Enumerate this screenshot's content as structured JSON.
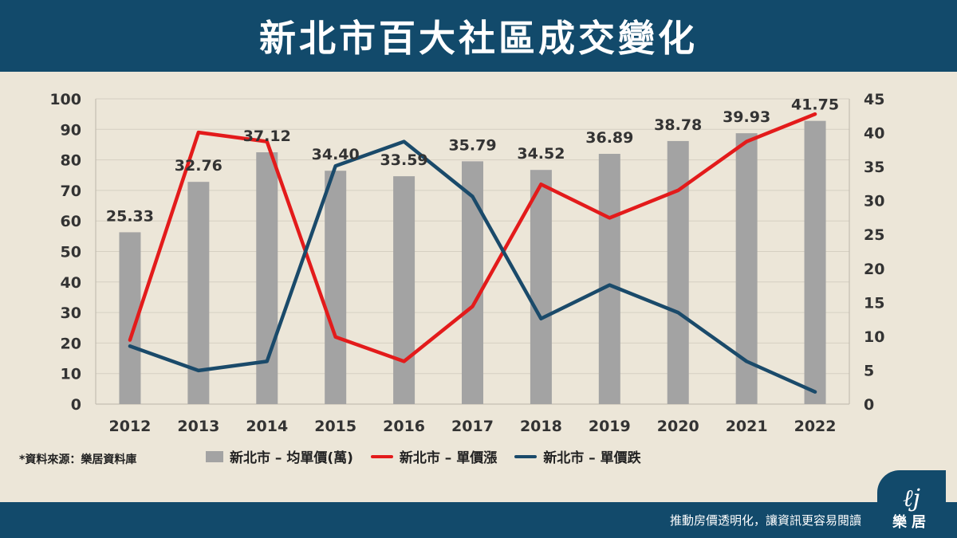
{
  "header": {
    "title": "新北市百大社區成交變化"
  },
  "source_note": "*資料來源：樂居資料庫",
  "footer": {
    "slogan": "推動房價透明化，讓資訊更容易閱讀",
    "logo_text": "樂居",
    "logo_mark": "ℓj"
  },
  "legend": {
    "avg_price": "新北市 – 均單價(萬)",
    "rise": "新北市 – 單價漲",
    "fall": "新北市 – 單價跌"
  },
  "colors": {
    "bar": "#a3a3a3",
    "rise": "#e31b1b",
    "fall": "#1a4a6a",
    "header": "#124a6b",
    "background": "#ece6d8"
  },
  "chart_data": {
    "type": "bar",
    "categories": [
      "2012",
      "2013",
      "2014",
      "2015",
      "2016",
      "2017",
      "2018",
      "2019",
      "2020",
      "2021",
      "2022"
    ],
    "series": [
      {
        "name": "新北市 – 均單價(萬)",
        "type": "bar",
        "axis": "right",
        "values": [
          25.33,
          32.76,
          37.12,
          34.4,
          33.59,
          35.79,
          34.52,
          36.89,
          38.78,
          39.93,
          41.75
        ],
        "labels": [
          "25.33",
          "32.76",
          "37.12",
          "34.40",
          "33.59",
          "35.79",
          "34.52",
          "36.89",
          "38.78",
          "39.93",
          "41.75"
        ]
      },
      {
        "name": "新北市 – 單價漲",
        "type": "line",
        "axis": "left",
        "values": [
          21,
          89,
          86,
          22,
          14,
          32,
          72,
          61,
          70,
          86,
          95
        ]
      },
      {
        "name": "新北市 – 單價跌",
        "type": "line",
        "axis": "left",
        "values": [
          19,
          11,
          14,
          78,
          86,
          68,
          28,
          39,
          30,
          14,
          4
        ]
      }
    ],
    "left_axis": {
      "ylim": [
        0,
        100
      ],
      "ticks": [
        "0",
        "10",
        "20",
        "30",
        "40",
        "50",
        "60",
        "70",
        "80",
        "90",
        "100"
      ]
    },
    "right_axis": {
      "ylim": [
        0,
        45
      ],
      "ticks": [
        "0",
        "5",
        "10",
        "15",
        "20",
        "25",
        "30",
        "35",
        "40",
        "45"
      ]
    },
    "grid": true
  }
}
